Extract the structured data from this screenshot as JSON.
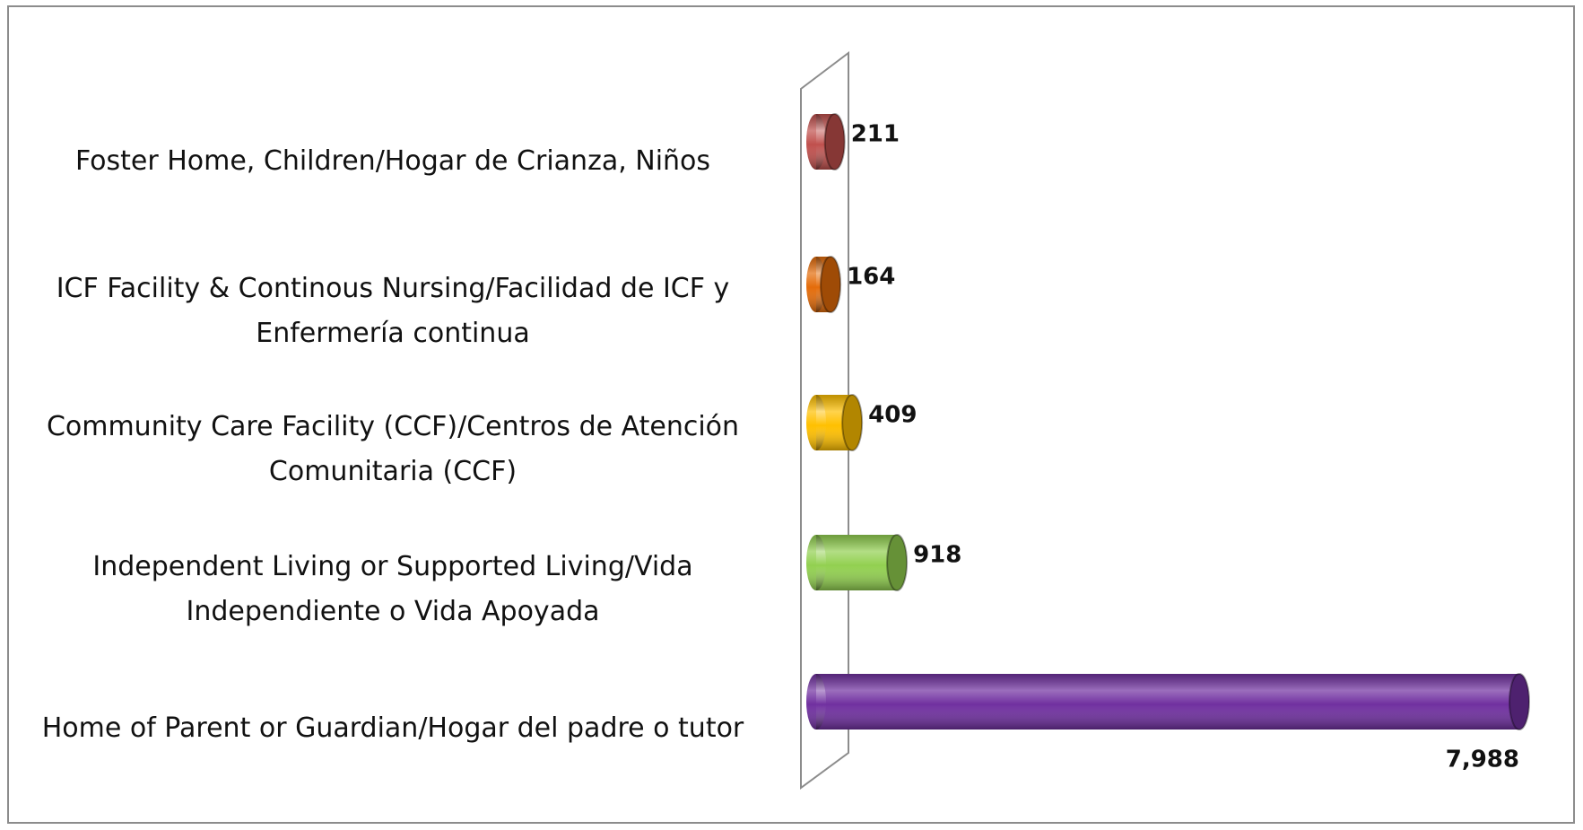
{
  "chart_data": {
    "type": "bar3d-horizontal",
    "categories": [
      "Foster Home, Children/Hogar de Crianza, Niños",
      "ICF Facility & Continous Nursing/Facilidad de ICF y Enfermería continua",
      "Community Care Facility (CCF)/Centros de Atención Comunitaria (CCF)",
      "Independent Living or Supported Living/Vida Independiente o Vida Apoyada",
      "Home of Parent or Guardian/Hogar del padre o tutor"
    ],
    "values": [
      211,
      164,
      409,
      918,
      7988
    ],
    "value_labels": [
      "211",
      "164",
      "409",
      "918",
      "7,988"
    ],
    "colors": [
      "#c0504d",
      "#e46c0a",
      "#ffc000",
      "#92d050",
      "#7030a0"
    ]
  }
}
